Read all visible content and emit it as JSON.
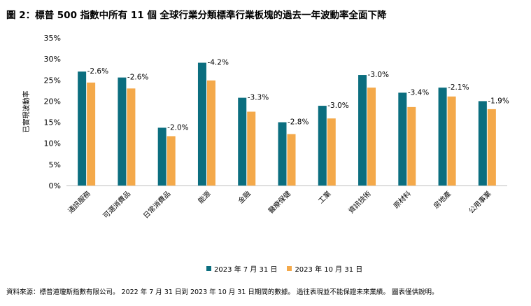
{
  "title": "圖 2：標普 500 指數中所有 11 個 全球行業分類標準行業板塊的過去一年波動率全面下降",
  "source": "資料來源：標普道瓊斯指數有限公司。 2022 年 7 月 31 日到 2023 年 10 月 31 日期間的數據。 過往表現並不能保證未來業績。 圖表僅供說明。",
  "colors": {
    "series1": "#0b6e7f",
    "series2": "#f4a94a"
  },
  "chart_data": {
    "type": "bar",
    "ylabel": "已實現波動率",
    "xlabel": "",
    "ylim": [
      0,
      35
    ],
    "yticks": [
      0,
      5,
      10,
      15,
      20,
      25,
      30,
      35
    ],
    "tick_format": "percent",
    "grid": false,
    "legend_position": "bottom",
    "categories": [
      "通訊服務",
      "可選消費品",
      "日常消費品",
      "能源",
      "金融",
      "醫療保健",
      "工業",
      "資訊技術",
      "原材料",
      "房地產",
      "公用事業"
    ],
    "series": [
      {
        "name": "2023 年 7 月 31 日",
        "color": "#0b6e7f",
        "values": [
          27.0,
          25.6,
          13.7,
          29.1,
          20.8,
          15.0,
          18.9,
          26.2,
          22.0,
          23.2,
          20.0
        ]
      },
      {
        "name": "2023 年 10 月 31 日",
        "color": "#f4a94a",
        "values": [
          24.4,
          23.0,
          11.7,
          24.9,
          17.5,
          12.2,
          15.9,
          23.2,
          18.6,
          21.1,
          18.1
        ]
      }
    ],
    "annotations": [
      "-2.6%",
      "-2.6%",
      "-2.0%",
      "-4.2%",
      "-3.3%",
      "-2.8%",
      "-3.0%",
      "-3.0%",
      "-3.4%",
      "-2.1%",
      "-1.9%"
    ]
  }
}
